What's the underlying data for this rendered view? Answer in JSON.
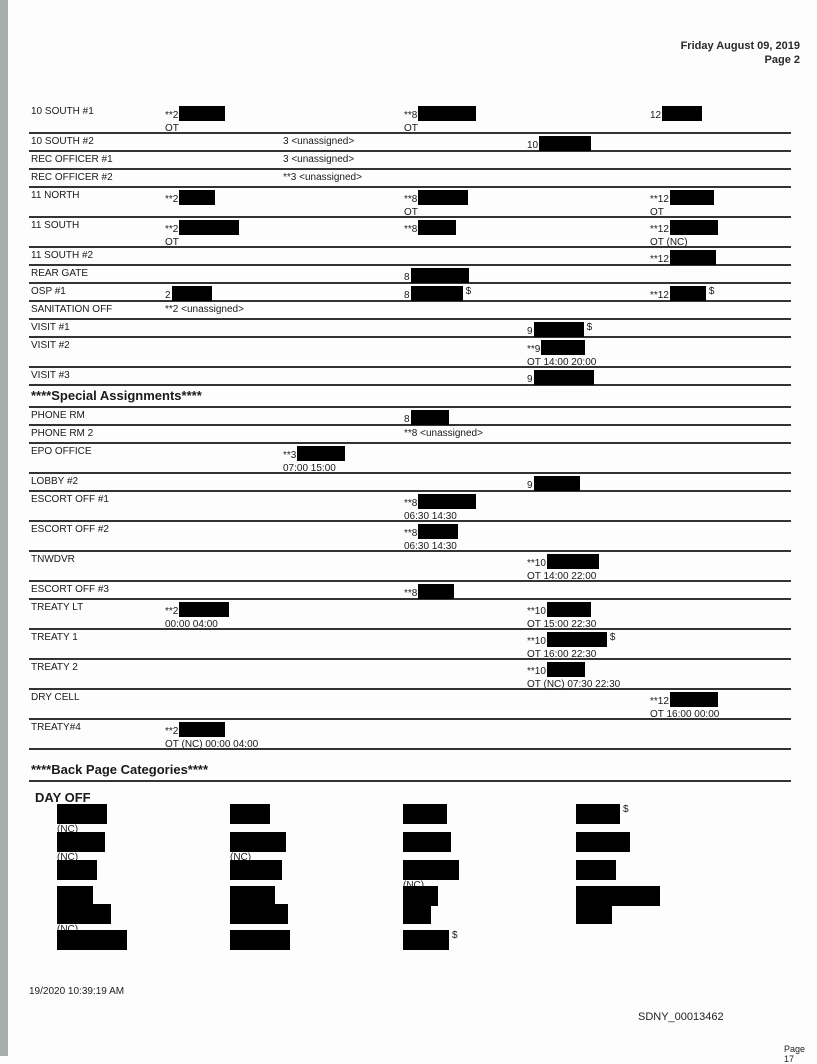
{
  "header": {
    "date": "Friday August 09, 2019",
    "page": "Page 2"
  },
  "rows": [
    {
      "label": "10 SOUTH #1",
      "cells": [
        {
          "c": 0,
          "t": "**2",
          "r": 1,
          "l2": "OT"
        },
        {
          "c": 2,
          "t": "**8",
          "r": 1,
          "l2": "OT"
        },
        {
          "c": 4,
          "t": "12",
          "r": 1
        }
      ]
    },
    {
      "label": "10 SOUTH #2",
      "cells": [
        {
          "c": 1,
          "t": "3 <unassigned>"
        },
        {
          "c": 3,
          "t": "10",
          "r": 1
        }
      ]
    },
    {
      "label": "REC OFFICER #1",
      "cells": [
        {
          "c": 1,
          "t": "3 <unassigned>"
        }
      ]
    },
    {
      "label": "REC OFFICER #2",
      "cells": [
        {
          "c": 1,
          "t": "**3 <unassigned>"
        }
      ]
    },
    {
      "label": "11 NORTH",
      "cells": [
        {
          "c": 0,
          "t": "**2",
          "r": 1
        },
        {
          "c": 2,
          "t": "**8",
          "r": 1,
          "l2": "OT"
        },
        {
          "c": 4,
          "t": "**12",
          "r": 1,
          "l2": "OT"
        }
      ]
    },
    {
      "label": "11 SOUTH",
      "cells": [
        {
          "c": 0,
          "t": "**2",
          "r": 1,
          "l2": "OT"
        },
        {
          "c": 2,
          "t": "**8",
          "r": 1
        },
        {
          "c": 4,
          "t": "**12",
          "r": 1,
          "l2": "OT (NC)"
        }
      ]
    },
    {
      "label": "11 SOUTH #2",
      "cells": [
        {
          "c": 4,
          "t": "**12",
          "r": 1
        }
      ]
    },
    {
      "label": "REAR GATE",
      "cells": [
        {
          "c": 2,
          "t": "8",
          "r": 1
        }
      ]
    },
    {
      "label": "OSP #1",
      "cells": [
        {
          "c": 0,
          "t": "2",
          "r": 1
        },
        {
          "c": 2,
          "t": "8",
          "r": 1,
          "s": "$"
        },
        {
          "c": 4,
          "t": "**12",
          "r": 1,
          "s": "$"
        }
      ]
    },
    {
      "label": "SANITATION OFF",
      "cells": [
        {
          "c": 0,
          "t": "**2 <unassigned>"
        }
      ]
    },
    {
      "label": "VISIT #1",
      "cells": [
        {
          "c": 3,
          "t": "9",
          "r": 1,
          "s": "$"
        }
      ]
    },
    {
      "label": "VISIT #2",
      "cells": [
        {
          "c": 3,
          "t": "**9",
          "r": 1,
          "l2": "OT 14:00 20:00"
        }
      ]
    },
    {
      "label": "VISIT #3",
      "cells": [
        {
          "c": 3,
          "t": "9",
          "r": 1
        }
      ]
    }
  ],
  "special_heading": "****Special Assignments****",
  "special_rows": [
    {
      "label": "PHONE RM",
      "cells": [
        {
          "c": 2,
          "t": "8",
          "r": 1
        }
      ]
    },
    {
      "label": "PHONE RM 2",
      "cells": [
        {
          "c": 2,
          "t": "**8 <unassigned>"
        }
      ]
    },
    {
      "label": "EPO OFFICE",
      "cells": [
        {
          "c": 1,
          "t": "**3",
          "r": 1,
          "l2": "07:00 15:00"
        }
      ]
    },
    {
      "label": "LOBBY #2",
      "cells": [
        {
          "c": 3,
          "t": "9",
          "r": 1
        }
      ]
    },
    {
      "label": "ESCORT OFF #1",
      "cells": [
        {
          "c": 2,
          "t": "**8",
          "r": 1,
          "l2": "06:30 14:30"
        }
      ]
    },
    {
      "label": "ESCORT OFF #2",
      "cells": [
        {
          "c": 2,
          "t": "**8",
          "r": 1,
          "l2": "06:30 14:30"
        }
      ]
    },
    {
      "label": "TNWDVR",
      "cells": [
        {
          "c": 3,
          "t": "**10",
          "r": 1,
          "l2": "OT 14:00 22:00"
        }
      ]
    },
    {
      "label": "ESCORT OFF #3",
      "cells": [
        {
          "c": 2,
          "t": "**8",
          "r": 1
        }
      ]
    },
    {
      "label": "TREATY LT",
      "cells": [
        {
          "c": 0,
          "t": "**2",
          "r": 1,
          "l2": "00:00 04:00"
        },
        {
          "c": 3,
          "t": "**10",
          "r": 1,
          "l2": "OT 15:00 22:30"
        }
      ]
    },
    {
      "label": "TREATY 1",
      "cells": [
        {
          "c": 3,
          "t": "**10",
          "r": 1,
          "s": "$",
          "l2": "OT 16:00 22:30"
        }
      ]
    },
    {
      "label": "TREATY 2",
      "cells": [
        {
          "c": 3,
          "t": "**10",
          "r": 1,
          "l2": "OT (NC) 07:30 22:30"
        }
      ]
    },
    {
      "label": "DRY CELL",
      "cells": [
        {
          "c": 4,
          "t": "**12",
          "r": 1,
          "l2": "OT 16:00 00:00"
        }
      ]
    },
    {
      "label": "TREATY#4",
      "cells": [
        {
          "c": 0,
          "t": "**2",
          "r": 1,
          "l2": "OT (NC) 00:00 04:00"
        }
      ]
    }
  ],
  "back_heading": "****Back Page Categories****",
  "day_off": {
    "title": "DAY OFF",
    "columns": [
      [
        {
          "nc": "(NC)"
        },
        {
          "nc": "(NC)"
        },
        {},
        {},
        {
          "nc": "(NC)"
        },
        {}
      ],
      [
        {},
        {
          "nc": "(NC)"
        },
        {},
        {},
        {},
        {}
      ],
      [
        {},
        {},
        {
          "nc": "(NC)"
        },
        {},
        {},
        {
          "s": "$"
        }
      ],
      [
        {
          "s": "$"
        },
        {},
        {},
        {},
        {}
      ]
    ]
  },
  "footer": {
    "timestamp": "19/2020 10:39:19 AM",
    "bates": "SDNY_00013462",
    "page": "Page 17"
  }
}
